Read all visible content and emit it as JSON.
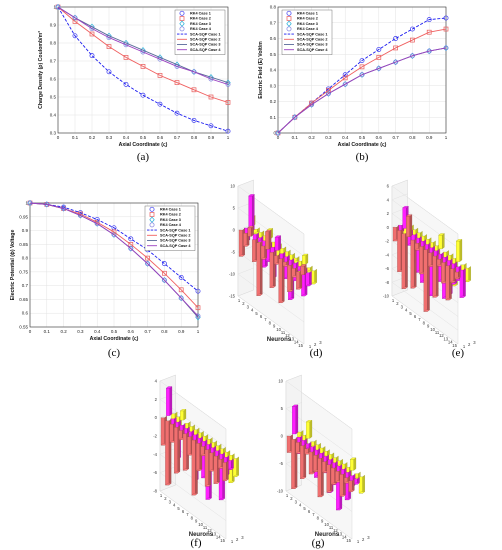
{
  "chart_data": [
    {
      "id": "a",
      "type": "line",
      "caption": "(a)",
      "xlabel": "Axial Coordinate (ς)",
      "ylabel": "Charge Density (ρ) Coulomb/m³",
      "xlim": [
        0,
        1
      ],
      "ylim": [
        0.3,
        1.0
      ],
      "xticks": [
        "0",
        "0.1",
        "0.2",
        "0.3",
        "0.4",
        "0.5",
        "0.6",
        "0.7",
        "0.8",
        "0.9",
        "1"
      ],
      "yticks": [
        "0.3",
        "0.4",
        "0.5",
        "0.6",
        "0.7",
        "0.8",
        "0.9",
        "1"
      ],
      "legend_position": "top-right",
      "x": [
        0,
        0.1,
        0.2,
        0.3,
        0.4,
        0.5,
        0.6,
        0.7,
        0.8,
        0.9,
        1
      ],
      "series": [
        {
          "name": "RK4 Case 1",
          "kind": "marker",
          "marker": "circle",
          "color": "#3a3af0",
          "values": [
            1.0,
            0.84,
            0.73,
            0.64,
            0.57,
            0.51,
            0.46,
            0.41,
            0.37,
            0.34,
            0.31
          ]
        },
        {
          "name": "RK4 Case 2",
          "kind": "marker",
          "marker": "square",
          "color": "#e85a5a",
          "values": [
            1.0,
            0.92,
            0.85,
            0.78,
            0.72,
            0.67,
            0.62,
            0.58,
            0.54,
            0.5,
            0.47
          ]
        },
        {
          "name": "RK4 Case 3",
          "kind": "marker",
          "marker": "diamond",
          "color": "#2ab0d8",
          "values": [
            1.0,
            0.94,
            0.89,
            0.84,
            0.8,
            0.76,
            0.72,
            0.68,
            0.64,
            0.61,
            0.58
          ]
        },
        {
          "name": "RK4 Case 4",
          "kind": "marker",
          "marker": "circle",
          "color": "#8080e0",
          "values": [
            1.0,
            0.94,
            0.88,
            0.83,
            0.79,
            0.75,
            0.71,
            0.67,
            0.64,
            0.6,
            0.57
          ]
        },
        {
          "name": "SCA-SQP Case 1",
          "kind": "line",
          "dash": "dashed",
          "color": "#1a1af0",
          "values": [
            1.0,
            0.84,
            0.73,
            0.64,
            0.57,
            0.51,
            0.46,
            0.41,
            0.37,
            0.34,
            0.31
          ]
        },
        {
          "name": "SCA-SQP Case 2",
          "kind": "line",
          "dash": "solid",
          "color": "#f06060",
          "values": [
            1.0,
            0.92,
            0.85,
            0.78,
            0.72,
            0.67,
            0.62,
            0.58,
            0.54,
            0.5,
            0.47
          ]
        },
        {
          "name": "SCA-SQP Case 3",
          "kind": "line",
          "dash": "solid",
          "color": "#5a6a9a",
          "values": [
            1.0,
            0.94,
            0.89,
            0.84,
            0.8,
            0.76,
            0.72,
            0.68,
            0.64,
            0.61,
            0.58
          ]
        },
        {
          "name": "SCA-SQP Case 4",
          "kind": "line",
          "dash": "solid",
          "color": "#9a40c0",
          "values": [
            1.0,
            0.94,
            0.88,
            0.83,
            0.79,
            0.75,
            0.71,
            0.67,
            0.64,
            0.6,
            0.57
          ]
        }
      ]
    },
    {
      "id": "b",
      "type": "line",
      "caption": "(b)",
      "xlabel": "Axial Coordinate (ς)",
      "ylabel": "Electric Field (E) Volt/m",
      "xlim": [
        0,
        1
      ],
      "ylim": [
        0,
        0.8
      ],
      "xticks": [
        "0",
        "0.1",
        "0.2",
        "0.3",
        "0.4",
        "0.5",
        "0.6",
        "0.7",
        "0.8",
        "0.9",
        "1"
      ],
      "yticks": [
        "0",
        "0.1",
        "0.2",
        "0.3",
        "0.4",
        "0.5",
        "0.6",
        "0.7",
        "0.8"
      ],
      "legend_position": "top-left",
      "x": [
        0,
        0.1,
        0.2,
        0.3,
        0.4,
        0.5,
        0.6,
        0.7,
        0.8,
        0.9,
        1
      ],
      "series": [
        {
          "name": "RK4 Case 1",
          "kind": "marker",
          "marker": "circle",
          "color": "#3a3af0",
          "values": [
            0,
            0.1,
            0.19,
            0.28,
            0.37,
            0.46,
            0.53,
            0.6,
            0.66,
            0.72,
            0.73
          ]
        },
        {
          "name": "RK4 Case 2",
          "kind": "marker",
          "marker": "square",
          "color": "#e85a5a",
          "values": [
            0,
            0.1,
            0.19,
            0.27,
            0.35,
            0.42,
            0.48,
            0.54,
            0.59,
            0.64,
            0.66
          ]
        },
        {
          "name": "RK4 Case 3",
          "kind": "marker",
          "marker": "diamond",
          "color": "#2ab0d8",
          "values": [
            0,
            0.1,
            0.18,
            0.25,
            0.31,
            0.37,
            0.41,
            0.45,
            0.49,
            0.52,
            0.54
          ]
        },
        {
          "name": "RK4 Case 4",
          "kind": "marker",
          "marker": "circle",
          "color": "#8080e0",
          "values": [
            0,
            0.1,
            0.18,
            0.25,
            0.31,
            0.37,
            0.41,
            0.45,
            0.49,
            0.52,
            0.54
          ]
        },
        {
          "name": "SCA-SQP Case 1",
          "kind": "line",
          "dash": "dashed",
          "color": "#1a1af0",
          "values": [
            0,
            0.1,
            0.19,
            0.28,
            0.37,
            0.46,
            0.53,
            0.6,
            0.66,
            0.72,
            0.73
          ]
        },
        {
          "name": "SCA-SQP Case 2",
          "kind": "line",
          "dash": "solid",
          "color": "#f06060",
          "values": [
            0,
            0.1,
            0.19,
            0.27,
            0.35,
            0.42,
            0.48,
            0.54,
            0.59,
            0.64,
            0.66
          ]
        },
        {
          "name": "SCA-SQP Case 3",
          "kind": "line",
          "dash": "solid",
          "color": "#5a6a9a",
          "values": [
            0,
            0.1,
            0.18,
            0.25,
            0.31,
            0.37,
            0.41,
            0.45,
            0.49,
            0.52,
            0.54
          ]
        },
        {
          "name": "SCA-SQP Case 4",
          "kind": "line",
          "dash": "solid",
          "color": "#9a40c0",
          "values": [
            0,
            0.1,
            0.18,
            0.25,
            0.31,
            0.37,
            0.41,
            0.45,
            0.49,
            0.52,
            0.54
          ]
        }
      ]
    },
    {
      "id": "c",
      "type": "line",
      "caption": "(c)",
      "xlabel": "Axial Coordinate (ς)",
      "ylabel": "Electric Potential (ϕ) Voltage",
      "xlim": [
        0,
        1
      ],
      "ylim": [
        0.55,
        1.0
      ],
      "xticks": [
        "0",
        "0.1",
        "0.2",
        "0.3",
        "0.4",
        "0.5",
        "0.6",
        "0.7",
        "0.8",
        "0.9",
        "1"
      ],
      "yticks": [
        "0.55",
        "0.6",
        "0.65",
        "0.7",
        "0.75",
        "0.8",
        "0.85",
        "0.9",
        "0.95",
        "1"
      ],
      "legend_position": "top-right",
      "x": [
        0,
        0.1,
        0.2,
        0.3,
        0.4,
        0.5,
        0.6,
        0.7,
        0.8,
        0.9,
        1
      ],
      "series": [
        {
          "name": "RK4 Case 1",
          "kind": "marker",
          "marker": "circle",
          "color": "#3a3af0",
          "values": [
            1.0,
            0.995,
            0.985,
            0.965,
            0.94,
            0.91,
            0.87,
            0.83,
            0.78,
            0.73,
            0.68
          ]
        },
        {
          "name": "RK4 Case 2",
          "kind": "marker",
          "marker": "square",
          "color": "#e85a5a",
          "values": [
            1.0,
            0.995,
            0.98,
            0.96,
            0.93,
            0.895,
            0.85,
            0.8,
            0.745,
            0.685,
            0.62
          ]
        },
        {
          "name": "RK4 Case 3",
          "kind": "marker",
          "marker": "diamond",
          "color": "#2ab0d8",
          "values": [
            1.0,
            0.995,
            0.98,
            0.955,
            0.925,
            0.885,
            0.835,
            0.78,
            0.72,
            0.655,
            0.585
          ]
        },
        {
          "name": "RK4 Case 4",
          "kind": "marker",
          "marker": "circle",
          "color": "#8080e0",
          "values": [
            1.0,
            0.995,
            0.98,
            0.955,
            0.925,
            0.885,
            0.835,
            0.78,
            0.72,
            0.655,
            0.59
          ]
        },
        {
          "name": "SCA-SQP Case 1",
          "kind": "line",
          "dash": "dashed",
          "color": "#1a1af0",
          "values": [
            1.0,
            0.995,
            0.985,
            0.965,
            0.94,
            0.91,
            0.87,
            0.83,
            0.78,
            0.73,
            0.68
          ]
        },
        {
          "name": "SCA-SQP Case 2",
          "kind": "line",
          "dash": "solid",
          "color": "#f06060",
          "values": [
            1.0,
            0.995,
            0.98,
            0.96,
            0.93,
            0.895,
            0.85,
            0.8,
            0.745,
            0.685,
            0.62
          ]
        },
        {
          "name": "SCA-SQP Case 3",
          "kind": "line",
          "dash": "solid",
          "color": "#5a6a9a",
          "values": [
            1.0,
            0.995,
            0.98,
            0.955,
            0.925,
            0.885,
            0.835,
            0.78,
            0.72,
            0.655,
            0.585
          ]
        },
        {
          "name": "SCA-SQP Case 4",
          "kind": "line",
          "dash": "solid",
          "color": "#9a40c0",
          "values": [
            1.0,
            0.995,
            0.98,
            0.955,
            0.925,
            0.885,
            0.835,
            0.78,
            0.72,
            0.655,
            0.59
          ]
        }
      ]
    },
    {
      "id": "d",
      "type": "bar3d",
      "caption": "(d)",
      "xlabel": "Neurons",
      "zticks": [
        "10",
        "5",
        "0",
        "-5",
        "-10",
        "-15"
      ],
      "zlim": [
        -15,
        10
      ],
      "neuron_ticks": [
        "1",
        "2",
        "3",
        "4",
        "5",
        "6",
        "7",
        "8",
        "9",
        "10",
        "11",
        "12",
        "13",
        "14",
        "15"
      ],
      "row_ticks": [
        "1",
        "2",
        "3"
      ],
      "colors": [
        "#f06f6f",
        "#ff1fff",
        "#ffff33"
      ],
      "rows": [
        [
          -6,
          -3,
          2,
          -5,
          -12,
          -3,
          4,
          -8,
          -2,
          -10,
          -1,
          -6,
          -2,
          -4,
          2
        ],
        [
          -3,
          8,
          -2,
          -1,
          -6,
          -4,
          -7,
          3,
          -3,
          -5,
          -9,
          -4,
          -1,
          -6,
          -3
        ],
        [
          2,
          -1,
          -3,
          -5,
          2,
          -2,
          -4,
          -2,
          -6,
          -3,
          -1,
          -5,
          2,
          -1,
          -3
        ]
      ]
    },
    {
      "id": "e",
      "type": "bar3d",
      "caption": "(e)",
      "xlabel": "",
      "zticks": [
        "6",
        "4",
        "2",
        "0",
        "-2",
        "-4",
        "-6",
        "-8",
        "-10"
      ],
      "zlim": [
        -10,
        6
      ],
      "neuron_ticks": [
        "1",
        "2",
        "3",
        "4",
        "5",
        "6",
        "7",
        "8",
        "9",
        "10",
        "11",
        "12",
        "13",
        "14",
        "15"
      ],
      "row_ticks": [
        "1",
        "2",
        "3"
      ],
      "colors": [
        "#f06f6f",
        "#ff1fff",
        "#ffff33"
      ],
      "rows": [
        [
          -2,
          -6,
          -8,
          3,
          -7,
          -1,
          -4,
          -9,
          -2,
          -6,
          -1,
          -3,
          -5,
          -2,
          -1
        ],
        [
          -1,
          3,
          -2,
          -4,
          -5,
          -6,
          -3,
          -7,
          -2,
          -4,
          -6,
          -5,
          -3,
          -2,
          -4
        ],
        [
          -2,
          -1,
          -3,
          -4,
          -1,
          -2,
          -5,
          -3,
          2,
          -1,
          -2,
          -4,
          3,
          -1,
          -2
        ]
      ]
    },
    {
      "id": "f",
      "type": "bar3d",
      "caption": "(f)",
      "xlabel": "Neurons",
      "zticks": [
        "4",
        "2",
        "0",
        "-2",
        "-4",
        "-6",
        "-8"
      ],
      "zlim": [
        -8,
        4
      ],
      "neuron_ticks": [
        "1",
        "2",
        "3",
        "4",
        "5",
        "6",
        "7",
        "8",
        "9",
        "10",
        "11",
        "12",
        "13",
        "14",
        "15"
      ],
      "row_ticks": [
        "1",
        "2",
        "3"
      ],
      "colors": [
        "#f06f6f",
        "#ff1fff",
        "#ffff33"
      ],
      "rows": [
        [
          -3,
          -7,
          -2,
          -5,
          -1,
          -4,
          -2,
          -6,
          -3,
          -1,
          -4,
          -2,
          -3,
          -1,
          -2
        ],
        [
          3,
          -2,
          -4,
          -1,
          -3,
          -2,
          -5,
          -2,
          -4,
          -6,
          -2,
          -3,
          -5,
          -2,
          -1
        ],
        [
          -1,
          -2,
          1,
          -2,
          -1,
          -3,
          -2,
          -1,
          -2,
          -3,
          -1,
          -2,
          -1,
          -3,
          -2
        ]
      ]
    },
    {
      "id": "g",
      "type": "bar3d",
      "caption": "(g)",
      "xlabel": "Neurons",
      "zticks": [
        "10",
        "5",
        "0",
        "-5",
        "-10"
      ],
      "zlim": [
        -10,
        10
      ],
      "neuron_ticks": [
        "1",
        "2",
        "3",
        "4",
        "5",
        "6",
        "7",
        "8",
        "9",
        "10",
        "11",
        "12",
        "13",
        "14",
        "15"
      ],
      "row_ticks": [
        "1",
        "2",
        "3"
      ],
      "colors": [
        "#f06f6f",
        "#ff1fff",
        "#ffff33"
      ],
      "rows": [
        [
          -3,
          -9,
          -2,
          -6,
          -1,
          -4,
          -3,
          -7,
          -2,
          -5,
          -3,
          -2,
          -4,
          -1,
          -2
        ],
        [
          5,
          -3,
          -2,
          -1,
          -4,
          -5,
          -2,
          -3,
          -6,
          -4,
          -8,
          -3,
          -5,
          -2,
          -1
        ],
        [
          -1,
          -2,
          3,
          -1,
          -2,
          -3,
          -1,
          -4,
          -2,
          -1,
          -3,
          -2,
          2,
          -1,
          -3
        ]
      ]
    }
  ]
}
